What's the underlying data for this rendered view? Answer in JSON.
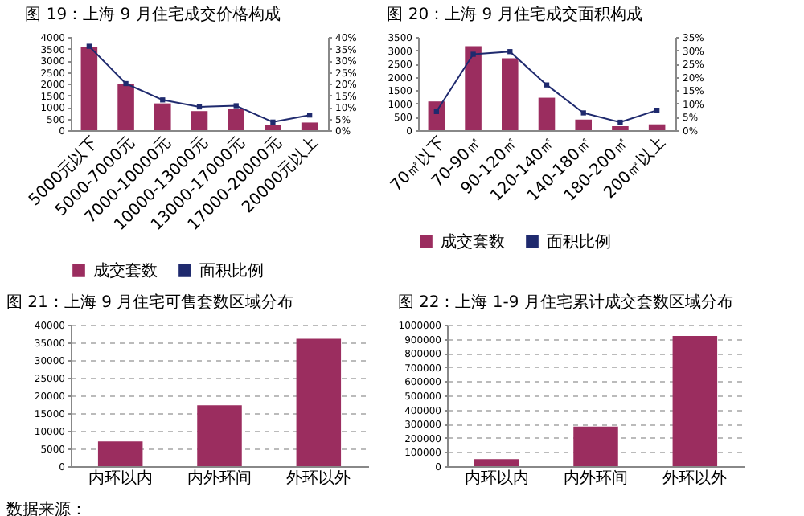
{
  "chart_data": [
    {
      "type": "bar",
      "title": "图 19：上海 9 月住宅成交价格构成",
      "categories": [
        "5000元以下",
        "5000-7000元",
        "7000-10000元",
        "10000-13000元",
        "13000-17000元",
        "17000-20000元",
        "20000元以上"
      ],
      "series": [
        {
          "name": "成交套数",
          "type": "bar",
          "color": "#9b2d5f",
          "values": [
            3550,
            1980,
            1150,
            820,
            900,
            230,
            330
          ]
        },
        {
          "name": "面积比例",
          "type": "line",
          "axis": "y2",
          "color": "#1f2a6e",
          "marker": "square",
          "line_style": "solid",
          "values": [
            36,
            20,
            13,
            10,
            10.5,
            3.5,
            6.5
          ]
        }
      ],
      "ylim": [
        0,
        4000
      ],
      "yticks": [
        0,
        500,
        1000,
        1500,
        2000,
        2500,
        3000,
        3500,
        4000
      ],
      "y2lim": [
        0,
        40
      ],
      "y2ticks": [
        {
          "value": 0,
          "label": "0%"
        },
        {
          "value": 5,
          "label": "5%"
        },
        {
          "value": 10,
          "label": "10%"
        },
        {
          "value": 15,
          "label": "15%"
        },
        {
          "value": 20,
          "label": "20%"
        },
        {
          "value": 25,
          "label": "25%"
        },
        {
          "value": 30,
          "label": "30%"
        },
        {
          "value": 35,
          "label": "35%"
        },
        {
          "value": 40,
          "label": "40%"
        }
      ],
      "legend": "bottom"
    },
    {
      "type": "bar",
      "title": "图 20：上海 9 月住宅成交面积构成",
      "categories": [
        "70㎡以下",
        "70-90㎡",
        "90-120㎡",
        "120-140㎡",
        "140-180㎡",
        "180-200㎡",
        "200㎡以上"
      ],
      "series": [
        {
          "name": "成交套数",
          "type": "bar",
          "color": "#9b2d5f",
          "values": [
            1080,
            3150,
            2700,
            1220,
            400,
            150,
            220
          ]
        },
        {
          "name": "面积比例",
          "type": "line",
          "axis": "y2",
          "color": "#1f2a6e",
          "marker": "square",
          "line_style": "solid",
          "values": [
            7,
            28.5,
            29.5,
            17,
            6.5,
            3,
            7.5
          ]
        }
      ],
      "ylim": [
        0,
        3500
      ],
      "yticks": [
        0,
        500,
        1000,
        1500,
        2000,
        2500,
        3000,
        3500
      ],
      "y2lim": [
        0,
        35
      ],
      "y2ticks": [
        {
          "value": 0,
          "label": "0%"
        },
        {
          "value": 5,
          "label": "5%"
        },
        {
          "value": 10,
          "label": "10%"
        },
        {
          "value": 15,
          "label": "15%"
        },
        {
          "value": 20,
          "label": "20%"
        },
        {
          "value": 25,
          "label": "25%"
        },
        {
          "value": 30,
          "label": "30%"
        },
        {
          "value": 35,
          "label": "35%"
        }
      ],
      "legend": "bottom"
    },
    {
      "type": "bar",
      "title": "图 21：上海 9 月住宅可售套数区域分布",
      "categories": [
        "内环以内",
        "内外环间",
        "外环以外"
      ],
      "series": [
        {
          "color": "#9b2d5f",
          "values": [
            7000,
            17200,
            36000
          ]
        }
      ],
      "ylim": [
        0,
        40000
      ],
      "yticks": [
        0,
        5000,
        10000,
        15000,
        20000,
        25000,
        30000,
        35000,
        40000
      ],
      "grid": "y",
      "annotations": [
        "数据来源："
      ]
    },
    {
      "type": "bar",
      "title": "图 22：上海 1-9 月住宅累计成交套数区域分布",
      "categories": [
        "内环以内",
        "内外环间",
        "外环以外"
      ],
      "series": [
        {
          "color": "#9b2d5f",
          "values": [
            50000,
            280000,
            920000
          ]
        }
      ],
      "ylim": [
        0,
        1000000
      ],
      "yticks": [
        0,
        100000,
        200000,
        300000,
        400000,
        500000,
        600000,
        700000,
        800000,
        900000,
        1000000
      ],
      "grid": "y"
    }
  ]
}
